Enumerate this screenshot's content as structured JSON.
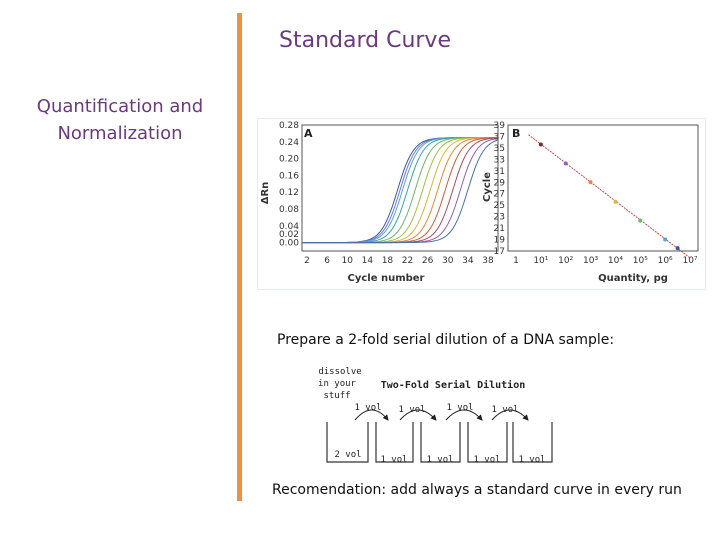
{
  "slide_title": "Standard Curve",
  "side_title_line1": "Quantification and",
  "side_title_line2": "Normalization",
  "dilution_text": "Prepare a 2-fold serial dilution of a DNA sample:",
  "recommendation": "Recomendation: add always a standard curve in every run",
  "dilution_diagram": {
    "note_lines": [
      "dissolve",
      "in your",
      "stuff"
    ],
    "title": "Two-Fold Serial Dilution",
    "transfer_labels": [
      "1 vol",
      "1 vol",
      "1 vol",
      "1 vol"
    ],
    "tube_labels": [
      "2 vol",
      "1 vol",
      "1 vol",
      "1 vol",
      "1 vol"
    ]
  },
  "chart_data": [
    {
      "type": "line",
      "panel_label": "A",
      "xlabel": "Cycle number",
      "ylabel": "ΔRn",
      "x_ticks": [
        "2",
        "6",
        "10",
        "14",
        "18",
        "22",
        "26",
        "30",
        "34",
        "38"
      ],
      "y_ticks": [
        "0.00",
        "0.02",
        "0.04",
        "0.08",
        "0.12",
        "0.16",
        "0.20",
        "0.24",
        "0.28"
      ],
      "ylim": [
        -0.02,
        0.28
      ],
      "xlim": [
        1,
        40
      ],
      "series_colors": [
        "#3a55a8",
        "#6a7fc8",
        "#5aa0d6",
        "#3aa3a0",
        "#6cb56a",
        "#9ac24a",
        "#d6b83a",
        "#e08a3a",
        "#c95d3a",
        "#a64a6c",
        "#8a63b8",
        "#4a6fa8"
      ],
      "threshold_cycles": [
        17,
        17.5,
        18,
        19,
        20.5,
        22,
        23.5,
        25,
        26.5,
        28,
        29.5,
        31
      ],
      "plateau": 0.25
    },
    {
      "type": "scatter",
      "panel_label": "B",
      "xlabel": "Quantity, pg",
      "ylabel": "Cycle",
      "x_ticks": [
        "1",
        "10¹",
        "10²",
        "10³",
        "10⁴",
        "10⁵",
        "10⁶",
        "10⁷"
      ],
      "y_ticks": [
        "17",
        "19",
        "21",
        "23",
        "25",
        "27",
        "29",
        "31",
        "33",
        "35",
        "37",
        "39"
      ],
      "ylim": [
        17,
        39
      ],
      "xlim_log10": [
        0,
        7
      ],
      "log_x": true,
      "points": [
        {
          "x_log10": 1.0,
          "y": 35.6,
          "color": "#7a2a2a"
        },
        {
          "x_log10": 2.0,
          "y": 32.3,
          "color": "#8a63b8"
        },
        {
          "x_log10": 3.0,
          "y": 29.0,
          "color": "#e08a3a"
        },
        {
          "x_log10": 4.0,
          "y": 25.6,
          "color": "#d6b83a"
        },
        {
          "x_log10": 5.0,
          "y": 22.3,
          "color": "#6cb56a"
        },
        {
          "x_log10": 6.0,
          "y": 19.0,
          "color": "#5aa0d6"
        },
        {
          "x_log10": 6.5,
          "y": 17.5,
          "color": "#3a55a8"
        }
      ],
      "fit_line": {
        "x_log10": [
          0.5,
          7.0
        ],
        "y": [
          37.3,
          15.8
        ],
        "color": "#c24a4a"
      }
    }
  ]
}
